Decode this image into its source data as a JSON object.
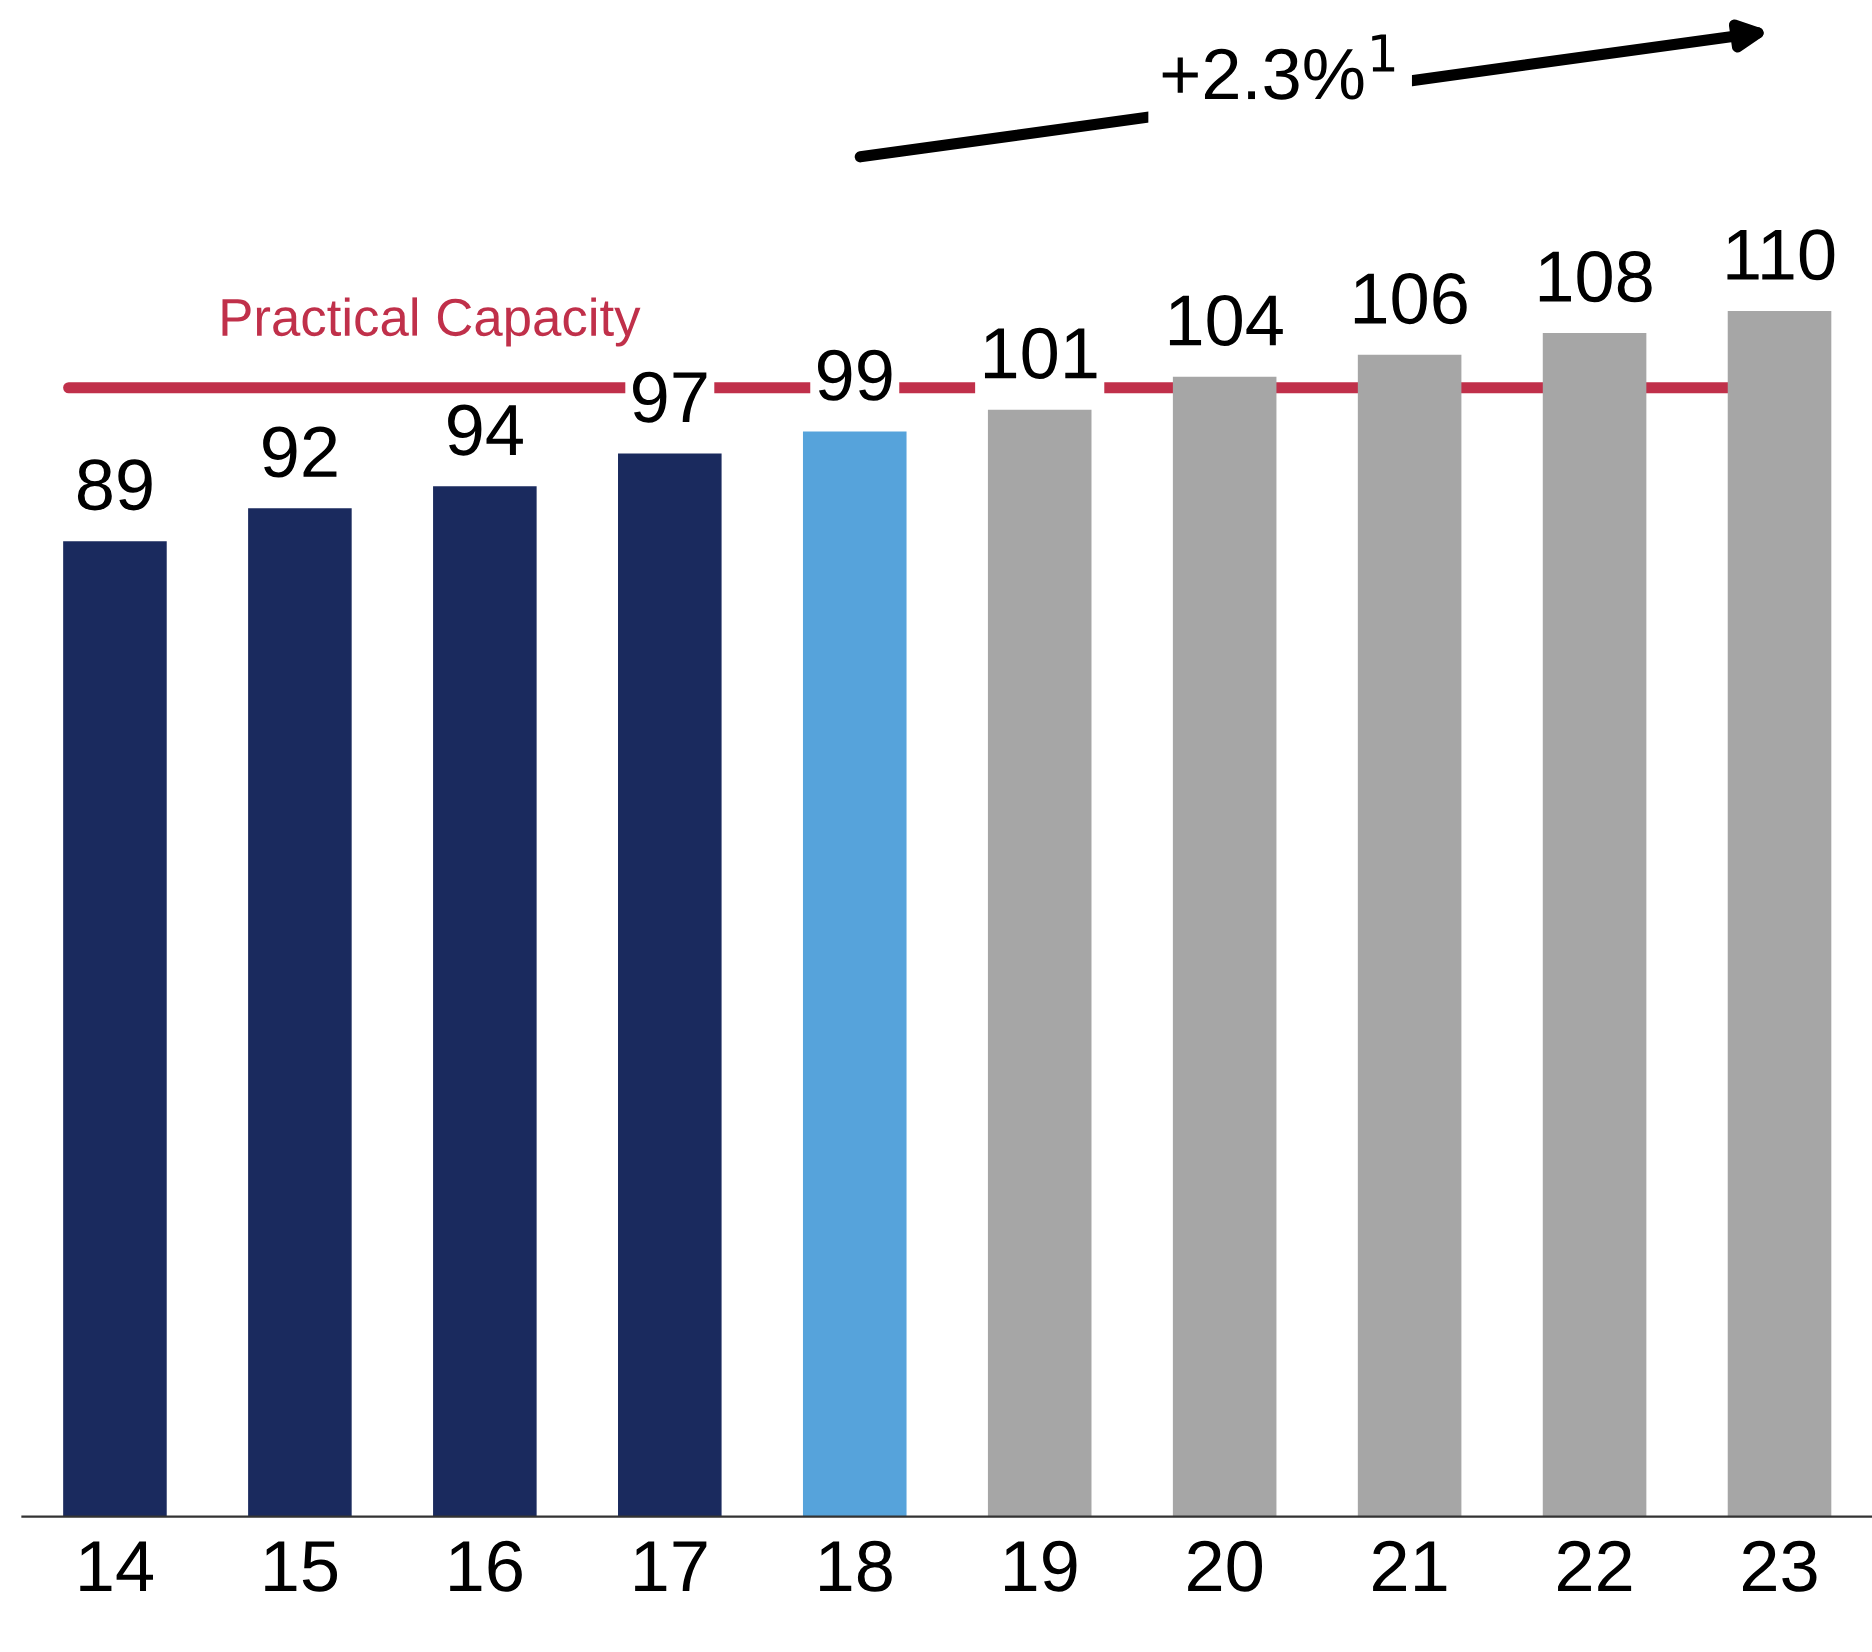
{
  "chart_data": {
    "type": "bar",
    "categories": [
      "14",
      "15",
      "16",
      "17",
      "18",
      "19",
      "20",
      "21",
      "22",
      "23"
    ],
    "values": [
      89,
      92,
      94,
      97,
      99,
      101,
      104,
      106,
      108,
      110
    ],
    "colors": [
      "#1a2a5e",
      "#1a2a5e",
      "#1a2a5e",
      "#1a2a5e",
      "#56a3db",
      "#a6a6a6",
      "#a6a6a6",
      "#a6a6a6",
      "#a6a6a6",
      "#a6a6a6"
    ],
    "data_labels": true,
    "ref_lines": [
      {
        "axis": "y",
        "value": 103,
        "label": "Practical Capacity",
        "color": "#c0304a"
      }
    ],
    "annotations": [
      "+2.3%$^{1}$"
    ]
  }
}
